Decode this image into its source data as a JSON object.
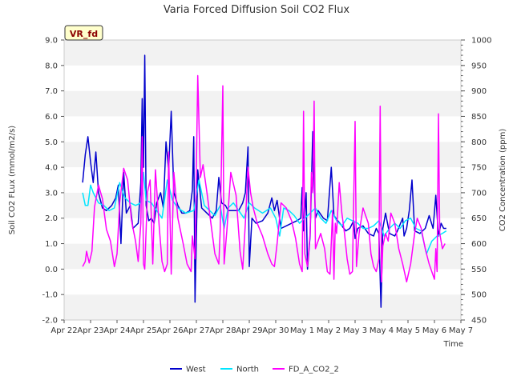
{
  "chart_data": {
    "type": "line",
    "title": "Varia Forced Diffusion Soil CO2 Flux",
    "badge": "VR_fd",
    "xlabel": "Time",
    "ylabel_left": "Soil CO2 FLux (mmol/m2/s)",
    "ylabel_right": "CO2 Concentration (ppm)",
    "x_ticks": [
      "Apr 22",
      "Apr 23",
      "Apr 24",
      "Apr 25",
      "Apr 26",
      "Apr 27",
      "Apr 28",
      "Apr 29",
      "Apr 30",
      "May 1",
      "May 2",
      "May 3",
      "May 4",
      "May 5",
      "May 6",
      "May 7"
    ],
    "x_range_days": [
      0,
      15
    ],
    "ylim_left": [
      -2.0,
      9.0
    ],
    "y_ticks_left": [
      "-2.0",
      "-1.0",
      "0.0",
      "1.0",
      "2.0",
      "3.0",
      "4.0",
      "5.0",
      "6.0",
      "7.0",
      "8.0",
      "9.0"
    ],
    "ylim_right": [
      450,
      1000
    ],
    "y_ticks_right": [
      "450",
      "500",
      "550",
      "600",
      "650",
      "700",
      "750",
      "800",
      "850",
      "900",
      "950",
      "1000"
    ],
    "grid": "horizontal bands",
    "legend_position": "bottom-center",
    "series": [
      {
        "name": "West",
        "axis": "left",
        "color": "#0000cc",
        "points": [
          [
            0.7,
            3.4
          ],
          [
            0.8,
            4.5
          ],
          [
            0.9,
            5.2
          ],
          [
            1.0,
            4.2
          ],
          [
            1.1,
            3.4
          ],
          [
            1.2,
            4.6
          ],
          [
            1.3,
            3.0
          ],
          [
            1.45,
            2.4
          ],
          [
            1.6,
            2.3
          ],
          [
            1.8,
            2.5
          ],
          [
            1.95,
            2.8
          ],
          [
            2.05,
            3.3
          ],
          [
            2.15,
            1.0
          ],
          [
            2.25,
            3.8
          ],
          [
            2.35,
            2.2
          ],
          [
            2.5,
            2.5
          ],
          [
            2.6,
            1.6
          ],
          [
            2.8,
            1.8
          ],
          [
            2.9,
            3.4
          ],
          [
            2.95,
            6.7
          ],
          [
            3.0,
            4.0
          ],
          [
            3.05,
            8.4
          ],
          [
            3.1,
            2.5
          ],
          [
            3.2,
            1.9
          ],
          [
            3.3,
            2.0
          ],
          [
            3.4,
            1.8
          ],
          [
            3.5,
            2.6
          ],
          [
            3.65,
            3.0
          ],
          [
            3.75,
            2.4
          ],
          [
            3.85,
            5.0
          ],
          [
            3.95,
            3.9
          ],
          [
            4.05,
            6.2
          ],
          [
            4.15,
            3.0
          ],
          [
            4.3,
            2.5
          ],
          [
            4.45,
            2.2
          ],
          [
            4.6,
            2.2
          ],
          [
            4.75,
            2.3
          ],
          [
            4.85,
            3.1
          ],
          [
            4.9,
            5.2
          ],
          [
            4.95,
            -1.3
          ],
          [
            5.05,
            3.9
          ],
          [
            5.2,
            2.4
          ],
          [
            5.4,
            2.2
          ],
          [
            5.6,
            2.0
          ],
          [
            5.75,
            2.3
          ],
          [
            5.85,
            3.6
          ],
          [
            5.95,
            2.6
          ],
          [
            6.1,
            2.5
          ],
          [
            6.2,
            2.3
          ],
          [
            6.45,
            2.3
          ],
          [
            6.6,
            2.3
          ],
          [
            6.75,
            2.6
          ],
          [
            6.85,
            3.0
          ],
          [
            6.95,
            4.8
          ],
          [
            7.0,
            0.1
          ],
          [
            7.1,
            2.0
          ],
          [
            7.25,
            1.8
          ],
          [
            7.5,
            1.9
          ],
          [
            7.7,
            2.2
          ],
          [
            7.85,
            2.8
          ],
          [
            7.95,
            2.3
          ],
          [
            8.05,
            2.7
          ],
          [
            8.2,
            1.6
          ],
          [
            8.4,
            1.7
          ],
          [
            8.6,
            1.8
          ],
          [
            8.8,
            1.9
          ],
          [
            8.95,
            2.0
          ],
          [
            9.0,
            3.2
          ],
          [
            9.05,
            1.5
          ],
          [
            9.15,
            3.0
          ],
          [
            9.2,
            0.0
          ],
          [
            9.3,
            1.3
          ],
          [
            9.4,
            5.4
          ],
          [
            9.5,
            2.0
          ],
          [
            9.6,
            2.3
          ],
          [
            9.8,
            2.0
          ],
          [
            9.95,
            1.9
          ],
          [
            10.1,
            4.0
          ],
          [
            10.2,
            2.1
          ],
          [
            10.35,
            1.9
          ],
          [
            10.5,
            1.7
          ],
          [
            10.65,
            1.5
          ],
          [
            10.8,
            1.6
          ],
          [
            10.95,
            1.9
          ],
          [
            11.0,
            1.2
          ],
          [
            11.1,
            1.6
          ],
          [
            11.3,
            1.7
          ],
          [
            11.5,
            1.4
          ],
          [
            11.7,
            1.3
          ],
          [
            11.8,
            1.6
          ],
          [
            11.9,
            1.4
          ],
          [
            11.98,
            -1.5
          ],
          [
            12.05,
            1.6
          ],
          [
            12.15,
            2.2
          ],
          [
            12.3,
            1.4
          ],
          [
            12.5,
            1.3
          ],
          [
            12.6,
            1.5
          ],
          [
            12.8,
            2.0
          ],
          [
            12.85,
            1.3
          ],
          [
            12.95,
            1.6
          ],
          [
            13.05,
            2.3
          ],
          [
            13.15,
            3.5
          ],
          [
            13.25,
            1.5
          ],
          [
            13.45,
            1.4
          ],
          [
            13.65,
            1.6
          ],
          [
            13.8,
            2.1
          ],
          [
            13.95,
            1.6
          ],
          [
            14.05,
            2.9
          ],
          [
            14.15,
            1.3
          ],
          [
            14.25,
            1.8
          ],
          [
            14.35,
            1.6
          ],
          [
            14.45,
            1.6
          ]
        ]
      },
      {
        "name": "North",
        "axis": "left",
        "color": "#00e5ff",
        "points": [
          [
            0.7,
            3.0
          ],
          [
            0.8,
            2.5
          ],
          [
            0.9,
            2.5
          ],
          [
            1.0,
            3.3
          ],
          [
            1.1,
            3.0
          ],
          [
            1.3,
            2.6
          ],
          [
            1.5,
            2.5
          ],
          [
            1.7,
            2.3
          ],
          [
            1.9,
            2.4
          ],
          [
            2.1,
            3.4
          ],
          [
            2.3,
            2.8
          ],
          [
            2.5,
            2.6
          ],
          [
            2.7,
            2.5
          ],
          [
            2.9,
            2.6
          ],
          [
            3.0,
            3.8
          ],
          [
            3.1,
            2.7
          ],
          [
            3.3,
            2.6
          ],
          [
            3.5,
            2.3
          ],
          [
            3.7,
            2.0
          ],
          [
            3.9,
            3.5
          ],
          [
            4.1,
            2.7
          ],
          [
            4.3,
            2.4
          ],
          [
            4.6,
            2.2
          ],
          [
            4.9,
            2.3
          ],
          [
            5.1,
            3.5
          ],
          [
            5.3,
            2.5
          ],
          [
            5.5,
            2.3
          ],
          [
            5.7,
            2.1
          ],
          [
            5.9,
            2.5
          ],
          [
            6.05,
            1.6
          ],
          [
            6.2,
            2.4
          ],
          [
            6.4,
            2.6
          ],
          [
            6.6,
            2.3
          ],
          [
            6.8,
            2.0
          ],
          [
            7.0,
            2.6
          ],
          [
            7.2,
            2.4
          ],
          [
            7.5,
            2.2
          ],
          [
            7.8,
            2.4
          ],
          [
            8.0,
            2.0
          ],
          [
            8.15,
            1.3
          ],
          [
            8.3,
            2.4
          ],
          [
            8.5,
            2.3
          ],
          [
            8.7,
            2.1
          ],
          [
            8.9,
            1.8
          ],
          [
            9.1,
            2.0
          ],
          [
            9.3,
            2.2
          ],
          [
            9.5,
            2.4
          ],
          [
            9.7,
            2.0
          ],
          [
            9.9,
            1.8
          ],
          [
            10.1,
            2.3
          ],
          [
            10.3,
            1.9
          ],
          [
            10.5,
            1.7
          ],
          [
            10.7,
            2.0
          ],
          [
            10.9,
            1.9
          ],
          [
            11.1,
            1.8
          ],
          [
            11.3,
            1.6
          ],
          [
            11.5,
            1.6
          ],
          [
            11.7,
            1.7
          ],
          [
            11.9,
            1.9
          ],
          [
            12.1,
            1.3
          ],
          [
            12.3,
            1.6
          ],
          [
            12.5,
            1.8
          ],
          [
            12.7,
            1.6
          ],
          [
            12.9,
            1.9
          ],
          [
            13.1,
            2.0
          ],
          [
            13.3,
            1.6
          ],
          [
            13.5,
            1.5
          ],
          [
            13.7,
            0.6
          ],
          [
            13.9,
            1.1
          ],
          [
            14.1,
            1.3
          ],
          [
            14.3,
            1.4
          ],
          [
            14.45,
            1.5
          ]
        ]
      },
      {
        "name": "FD_A_CO2_2",
        "axis": "right",
        "color": "#ff00ff",
        "points": [
          [
            0.7,
            555
          ],
          [
            0.8,
            565
          ],
          [
            0.85,
            585
          ],
          [
            0.95,
            562
          ],
          [
            1.05,
            585
          ],
          [
            1.15,
            672
          ],
          [
            1.3,
            715
          ],
          [
            1.45,
            688
          ],
          [
            1.6,
            628
          ],
          [
            1.75,
            605
          ],
          [
            1.9,
            555
          ],
          [
            2.0,
            580
          ],
          [
            2.1,
            680
          ],
          [
            2.25,
            748
          ],
          [
            2.4,
            725
          ],
          [
            2.55,
            645
          ],
          [
            2.7,
            605
          ],
          [
            2.8,
            565
          ],
          [
            2.9,
            640
          ],
          [
            2.95,
            810
          ],
          [
            3.0,
            560
          ],
          [
            3.05,
            550
          ],
          [
            3.15,
            700
          ],
          [
            3.25,
            725
          ],
          [
            3.35,
            560
          ],
          [
            3.45,
            745
          ],
          [
            3.6,
            630
          ],
          [
            3.7,
            565
          ],
          [
            3.8,
            545
          ],
          [
            3.9,
            560
          ],
          [
            3.95,
            780
          ],
          [
            4.05,
            540
          ],
          [
            4.15,
            740
          ],
          [
            4.3,
            650
          ],
          [
            4.5,
            600
          ],
          [
            4.65,
            560
          ],
          [
            4.8,
            545
          ],
          [
            4.85,
            615
          ],
          [
            4.95,
            570
          ],
          [
            5.05,
            930
          ],
          [
            5.15,
            730
          ],
          [
            5.25,
            755
          ],
          [
            5.4,
            700
          ],
          [
            5.55,
            640
          ],
          [
            5.7,
            580
          ],
          [
            5.85,
            560
          ],
          [
            5.9,
            625
          ],
          [
            6.0,
            910
          ],
          [
            6.05,
            560
          ],
          [
            6.15,
            625
          ],
          [
            6.3,
            740
          ],
          [
            6.5,
            695
          ],
          [
            6.65,
            585
          ],
          [
            6.75,
            550
          ],
          [
            6.85,
            640
          ],
          [
            6.95,
            750
          ],
          [
            7.05,
            700
          ],
          [
            7.15,
            670
          ],
          [
            7.3,
            640
          ],
          [
            7.5,
            615
          ],
          [
            7.7,
            580
          ],
          [
            7.85,
            560
          ],
          [
            7.95,
            555
          ],
          [
            8.05,
            600
          ],
          [
            8.2,
            680
          ],
          [
            8.4,
            670
          ],
          [
            8.6,
            645
          ],
          [
            8.75,
            610
          ],
          [
            8.9,
            560
          ],
          [
            9.0,
            545
          ],
          [
            9.05,
            860
          ],
          [
            9.1,
            580
          ],
          [
            9.2,
            555
          ],
          [
            9.3,
            620
          ],
          [
            9.35,
            740
          ],
          [
            9.4,
            700
          ],
          [
            9.45,
            880
          ],
          [
            9.5,
            590
          ],
          [
            9.6,
            605
          ],
          [
            9.7,
            620
          ],
          [
            9.85,
            590
          ],
          [
            9.95,
            545
          ],
          [
            10.05,
            540
          ],
          [
            10.15,
            665
          ],
          [
            10.2,
            530
          ],
          [
            10.25,
            640
          ],
          [
            10.3,
            620
          ],
          [
            10.4,
            720
          ],
          [
            10.5,
            660
          ],
          [
            10.6,
            620
          ],
          [
            10.7,
            570
          ],
          [
            10.8,
            540
          ],
          [
            10.9,
            545
          ],
          [
            11.0,
            840
          ],
          [
            11.05,
            555
          ],
          [
            11.15,
            620
          ],
          [
            11.3,
            670
          ],
          [
            11.5,
            640
          ],
          [
            11.6,
            580
          ],
          [
            11.7,
            555
          ],
          [
            11.8,
            545
          ],
          [
            11.9,
            570
          ],
          [
            11.95,
            870
          ],
          [
            12.0,
            525
          ],
          [
            12.05,
            595
          ],
          [
            12.15,
            620
          ],
          [
            12.25,
            605
          ],
          [
            12.35,
            660
          ],
          [
            12.5,
            640
          ],
          [
            12.65,
            590
          ],
          [
            12.8,
            560
          ],
          [
            12.95,
            525
          ],
          [
            13.1,
            560
          ],
          [
            13.25,
            620
          ],
          [
            13.35,
            650
          ],
          [
            13.5,
            630
          ],
          [
            13.65,
            590
          ],
          [
            13.8,
            560
          ],
          [
            13.9,
            545
          ],
          [
            14.0,
            530
          ],
          [
            14.05,
            590
          ],
          [
            14.1,
            545
          ],
          [
            14.15,
            855
          ],
          [
            14.2,
            620
          ],
          [
            14.3,
            590
          ],
          [
            14.4,
            600
          ]
        ]
      }
    ]
  }
}
